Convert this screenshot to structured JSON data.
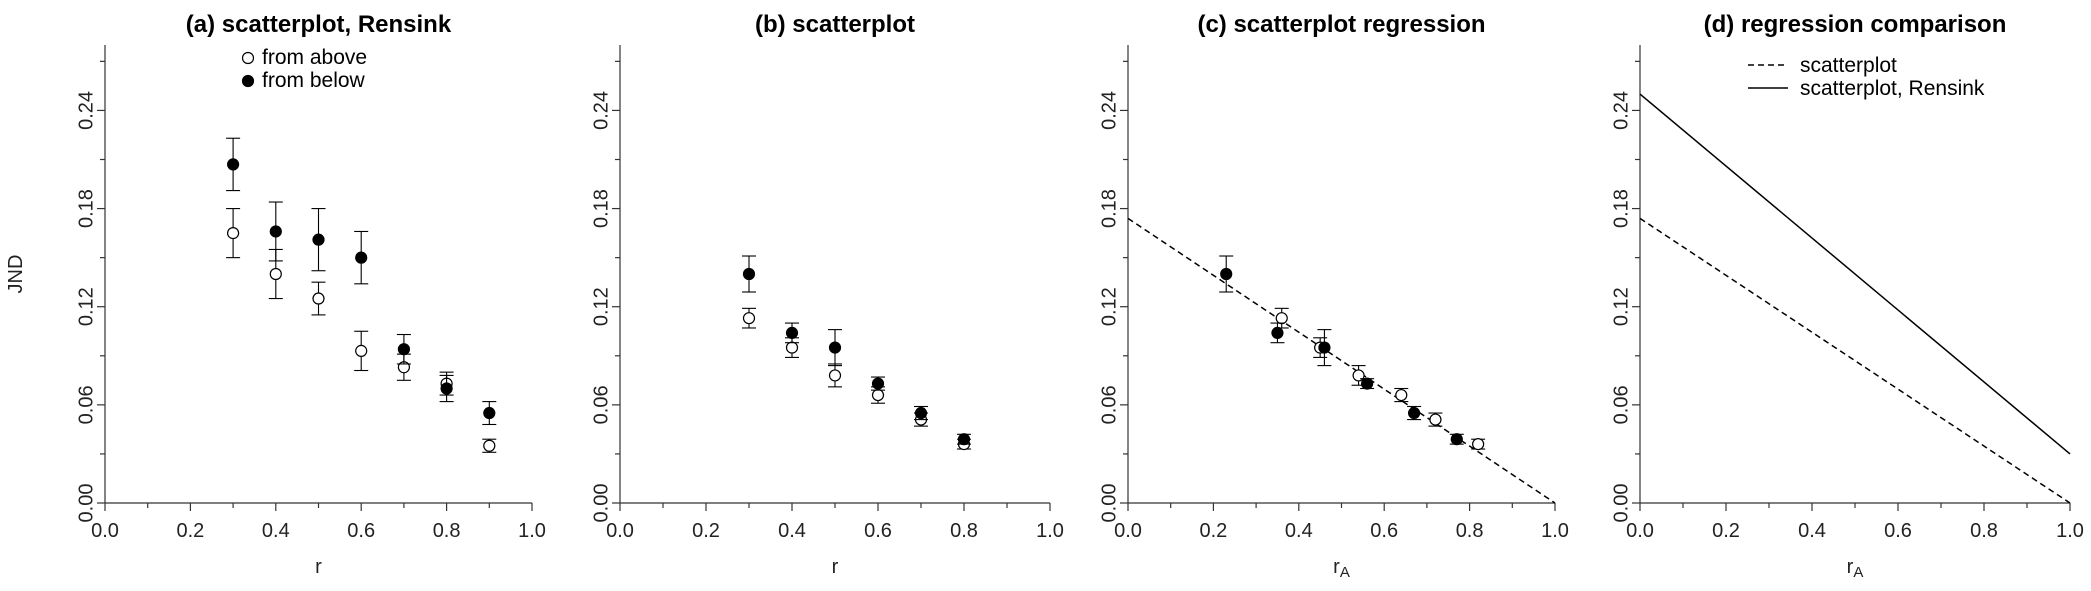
{
  "chart_data": [
    {
      "type": "scatter",
      "title": "(a) scatterplot, Rensink",
      "xlabel": "r",
      "xlabel_sub": "",
      "ylabel": "JND",
      "xlim": [
        0.0,
        1.0
      ],
      "ylim": [
        0.0,
        0.28
      ],
      "xticks": [
        "0.0",
        "0.2",
        "0.4",
        "0.6",
        "0.8",
        "1.0"
      ],
      "yticks": [
        "0.00",
        "0.06",
        "0.12",
        "0.18",
        "0.24"
      ],
      "legend": {
        "placement": "top-center",
        "entries": [
          "from above",
          "from below"
        ]
      },
      "series": [
        {
          "name": "from above",
          "marker": "open-circle",
          "points": [
            {
              "x": 0.3,
              "y": 0.165,
              "err": 0.015
            },
            {
              "x": 0.4,
              "y": 0.14,
              "err": 0.015
            },
            {
              "x": 0.5,
              "y": 0.125,
              "err": 0.01
            },
            {
              "x": 0.6,
              "y": 0.093,
              "err": 0.012
            },
            {
              "x": 0.7,
              "y": 0.083,
              "err": 0.008
            },
            {
              "x": 0.8,
              "y": 0.073,
              "err": 0.007
            },
            {
              "x": 0.9,
              "y": 0.035,
              "err": 0.004
            }
          ]
        },
        {
          "name": "from below",
          "marker": "filled-circle",
          "points": [
            {
              "x": 0.3,
              "y": 0.207,
              "err": 0.016
            },
            {
              "x": 0.4,
              "y": 0.166,
              "err": 0.018
            },
            {
              "x": 0.5,
              "y": 0.161,
              "err": 0.019
            },
            {
              "x": 0.6,
              "y": 0.15,
              "err": 0.016
            },
            {
              "x": 0.7,
              "y": 0.094,
              "err": 0.009
            },
            {
              "x": 0.8,
              "y": 0.07,
              "err": 0.008
            },
            {
              "x": 0.9,
              "y": 0.055,
              "err": 0.007
            }
          ]
        }
      ],
      "lines": []
    },
    {
      "type": "scatter",
      "title": "(b) scatterplot",
      "xlabel": "r",
      "xlabel_sub": "",
      "ylabel": "",
      "xlim": [
        0.0,
        1.0
      ],
      "ylim": [
        0.0,
        0.28
      ],
      "xticks": [
        "0.0",
        "0.2",
        "0.4",
        "0.6",
        "0.8",
        "1.0"
      ],
      "yticks": [
        "0.00",
        "0.06",
        "0.12",
        "0.18",
        "0.24"
      ],
      "series": [
        {
          "name": "from above",
          "marker": "open-circle",
          "points": [
            {
              "x": 0.3,
              "y": 0.113,
              "err": 0.006
            },
            {
              "x": 0.4,
              "y": 0.095,
              "err": 0.006
            },
            {
              "x": 0.5,
              "y": 0.078,
              "err": 0.007
            },
            {
              "x": 0.6,
              "y": 0.066,
              "err": 0.005
            },
            {
              "x": 0.7,
              "y": 0.051,
              "err": 0.004
            },
            {
              "x": 0.8,
              "y": 0.036,
              "err": 0.003
            }
          ]
        },
        {
          "name": "from below",
          "marker": "filled-circle",
          "points": [
            {
              "x": 0.3,
              "y": 0.14,
              "err": 0.011
            },
            {
              "x": 0.4,
              "y": 0.104,
              "err": 0.006
            },
            {
              "x": 0.5,
              "y": 0.095,
              "err": 0.011
            },
            {
              "x": 0.6,
              "y": 0.073,
              "err": 0.004
            },
            {
              "x": 0.7,
              "y": 0.055,
              "err": 0.004
            },
            {
              "x": 0.8,
              "y": 0.039,
              "err": 0.003
            }
          ]
        }
      ],
      "lines": []
    },
    {
      "type": "scatter",
      "title": "(c) scatterplot regression",
      "xlabel": "r",
      "xlabel_sub": "A",
      "ylabel": "",
      "xlim": [
        0.0,
        1.0
      ],
      "ylim": [
        0.0,
        0.28
      ],
      "xticks": [
        "0.0",
        "0.2",
        "0.4",
        "0.6",
        "0.8",
        "1.0"
      ],
      "yticks": [
        "0.00",
        "0.06",
        "0.12",
        "0.18",
        "0.24"
      ],
      "series": [
        {
          "name": "from above",
          "marker": "open-circle",
          "points": [
            {
              "x": 0.36,
              "y": 0.113,
              "err": 0.006
            },
            {
              "x": 0.45,
              "y": 0.095,
              "err": 0.006
            },
            {
              "x": 0.54,
              "y": 0.078,
              "err": 0.006
            },
            {
              "x": 0.64,
              "y": 0.066,
              "err": 0.004
            },
            {
              "x": 0.72,
              "y": 0.051,
              "err": 0.004
            },
            {
              "x": 0.82,
              "y": 0.036,
              "err": 0.003
            }
          ]
        },
        {
          "name": "from below",
          "marker": "filled-circle",
          "points": [
            {
              "x": 0.23,
              "y": 0.14,
              "err": 0.011
            },
            {
              "x": 0.35,
              "y": 0.104,
              "err": 0.006
            },
            {
              "x": 0.46,
              "y": 0.095,
              "err": 0.011
            },
            {
              "x": 0.56,
              "y": 0.073,
              "err": 0.003
            },
            {
              "x": 0.67,
              "y": 0.055,
              "err": 0.004
            },
            {
              "x": 0.77,
              "y": 0.039,
              "err": 0.003
            }
          ]
        }
      ],
      "lines": [
        {
          "name": "regression",
          "style": "dashed",
          "x": [
            0.0,
            1.0
          ],
          "y": [
            0.174,
            0.0
          ]
        }
      ]
    },
    {
      "type": "line",
      "title": "(d) regression comparison",
      "xlabel": "r",
      "xlabel_sub": "A",
      "ylabel": "",
      "xlim": [
        0.0,
        1.0
      ],
      "ylim": [
        0.0,
        0.28
      ],
      "xticks": [
        "0.0",
        "0.2",
        "0.4",
        "0.6",
        "0.8",
        "1.0"
      ],
      "yticks": [
        "0.00",
        "0.06",
        "0.12",
        "0.18",
        "0.24"
      ],
      "legend": {
        "placement": "top-right",
        "entries": [
          "scatterplot",
          "scatterplot, Rensink"
        ]
      },
      "series": [],
      "lines": [
        {
          "name": "scatterplot",
          "style": "dashed",
          "x": [
            0.0,
            1.0
          ],
          "y": [
            0.174,
            0.0
          ]
        },
        {
          "name": "scatterplot, Rensink",
          "style": "solid",
          "x": [
            0.0,
            1.0
          ],
          "y": [
            0.25,
            0.03
          ]
        }
      ]
    }
  ]
}
